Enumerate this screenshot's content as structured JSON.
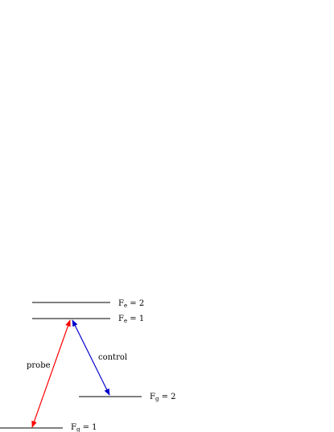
{
  "diagram": {
    "levels": [
      {
        "id": "Fe2",
        "symbol": "F",
        "subscript": "e",
        "relation": " = 2"
      },
      {
        "id": "Fe1",
        "symbol": "F",
        "subscript": "e",
        "relation": " = 1"
      },
      {
        "id": "Fg2",
        "symbol": "F",
        "subscript": "g",
        "relation": " = 2"
      },
      {
        "id": "Fg1",
        "symbol": "F",
        "subscript": "g",
        "relation": " = 1"
      }
    ],
    "transitions": [
      {
        "label": "probe",
        "from": "Fg1",
        "to": "Fe1",
        "color": "#ff0000"
      },
      {
        "label": "control",
        "from": "Fg2",
        "to": "Fe1",
        "color": "#0000cc"
      }
    ]
  }
}
